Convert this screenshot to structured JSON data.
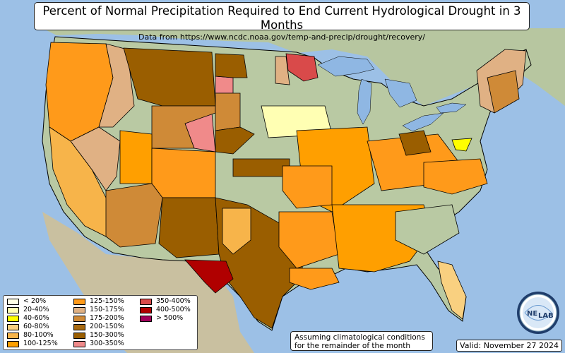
{
  "title": "Percent of Normal Precipitation Required to End Current Hydrological Drought in 3 Months",
  "subtitle": "Data from https://www.ncdc.noaa.gov/temp-and-precip/drought/recovery/",
  "note": {
    "line1": "Assuming climatological conditions",
    "line2": "for the remainder of the month"
  },
  "valid": "Valid: November 27 2024",
  "logo": {
    "text_left": "NE",
    "text_right": "LAB"
  },
  "colors": {
    "ocean": "#9cc0e6",
    "lake": "#8fb7e3",
    "land": "#b9c9a3",
    "border": "#000000"
  },
  "legend": [
    {
      "label": "< 20%",
      "color": "#ffffe5"
    },
    {
      "label": "20-40%",
      "color": "#ffffb3"
    },
    {
      "label": "40-60%",
      "color": "#ffff00"
    },
    {
      "label": "60-80%",
      "color": "#f9d080"
    },
    {
      "label": "80-100%",
      "color": "#f7b44a"
    },
    {
      "label": "100-125%",
      "color": "#ff9f00"
    },
    {
      "label": "125-150%",
      "color": "#ff9a1a"
    },
    {
      "label": "150-175%",
      "color": "#e0b184"
    },
    {
      "label": "175-200%",
      "color": "#cf8a37"
    },
    {
      "label": "200-150%",
      "color": "#a86a12"
    },
    {
      "label": "150-300%",
      "color": "#9a5e00"
    },
    {
      "label": "300-350%",
      "color": "#f08a8a"
    },
    {
      "label": "350-400%",
      "color": "#d94a4a"
    },
    {
      "label": "400-500%",
      "color": "#b00000"
    },
    {
      "label": "> 500%",
      "color": "#a0005a"
    }
  ]
}
